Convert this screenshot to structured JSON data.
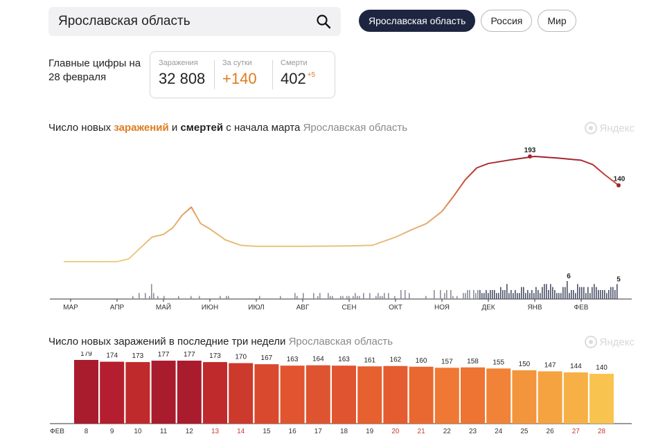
{
  "search": {
    "value": "Ярославская область"
  },
  "tabs": [
    {
      "label": "Ярославская область",
      "active": true
    },
    {
      "label": "Россия",
      "active": false
    },
    {
      "label": "Мир",
      "active": false
    }
  ],
  "key_figures": {
    "title": "Главные цифры на 28 февраля",
    "stats": [
      {
        "label": "Заражения",
        "value": "32 808"
      },
      {
        "label": "За сутки",
        "value": "+140"
      },
      {
        "label": "Смерти",
        "value": "402",
        "delta": "+5"
      }
    ]
  },
  "chart1_title": {
    "p1": "Число новых ",
    "p2": "заражений",
    "p3": " и ",
    "p4": "смертей",
    "p5": " с начала марта",
    "region": "Ярославская область"
  },
  "chart2_title": {
    "text": "Число новых заражений в последние три недели",
    "region": "Ярославская область"
  },
  "brand": "Яндекс",
  "colors": {
    "accent_orange": "#e07a1e",
    "active_tab": "#1e2540",
    "death_bars": "#4a4f66"
  },
  "chart_data": [
    {
      "type": "line",
      "title": "Число новых заражений и смертей с начала марта",
      "x_tick_labels": [
        "МАР",
        "АПР",
        "МАЙ",
        "ИЮН",
        "ИЮЛ",
        "АВГ",
        "СЕН",
        "ОКТ",
        "НОЯ",
        "ДЕК",
        "ЯНВ",
        "ФЕВ"
      ],
      "series": [
        {
          "name": "заражений",
          "points": [
            [
              "МАР",
              0
            ],
            [
              "АПР",
              0
            ],
            [
              "АПР",
              5
            ],
            [
              "АПР",
              25
            ],
            [
              "АПР",
              45
            ],
            [
              "МАЙ",
              50
            ],
            [
              "МАЙ",
              62
            ],
            [
              "МАЙ",
              85
            ],
            [
              "МАЙ",
              100
            ],
            [
              "МАЙ",
              70
            ],
            [
              "ИЮН",
              60
            ],
            [
              "ИЮН",
              40
            ],
            [
              "ИЮН",
              30
            ],
            [
              "ИЮЛ",
              28
            ],
            [
              "ИЮЛ",
              28
            ],
            [
              "АВГ",
              28
            ],
            [
              "СЕН",
              29
            ],
            [
              "СЕН",
              30
            ],
            [
              "ОКТ",
              45
            ],
            [
              "ОКТ",
              58
            ],
            [
              "ОКТ",
              70
            ],
            [
              "НОЯ",
              92
            ],
            [
              "НОЯ",
              120
            ],
            [
              "НОЯ",
              150
            ],
            [
              "НОЯ",
              172
            ],
            [
              "ДЕК",
              180
            ],
            [
              "ДЕК",
              187
            ],
            [
              "ЯНВ",
              193
            ],
            [
              "ЯНВ",
              190
            ],
            [
              "ФЕВ",
              186
            ],
            [
              "ФЕВ",
              178
            ],
            [
              "ФЕВ",
              160
            ],
            [
              "ФЕВ",
              140
            ]
          ],
          "annotations": [
            {
              "x": "ЯНВ",
              "y": 193,
              "label": "193"
            },
            {
              "x": "ФЕВ",
              "y": 140,
              "label": "140"
            }
          ]
        },
        {
          "name": "смертей",
          "type": "bar",
          "annotations": [
            {
              "x": "ЯНВ",
              "y": 6,
              "label": "6"
            },
            {
              "x": "ФЕВ",
              "y": 5,
              "label": "5"
            }
          ],
          "approx_peak": 6
        }
      ]
    },
    {
      "type": "bar",
      "title": "Число новых заражений в последние три недели",
      "first_label": "ФЕВ",
      "categories": [
        "8",
        "9",
        "10",
        "11",
        "12",
        "13",
        "14",
        "15",
        "16",
        "17",
        "18",
        "19",
        "20",
        "21",
        "22",
        "23",
        "24",
        "25",
        "26",
        "27",
        "28"
      ],
      "values": [
        179,
        174,
        173,
        177,
        177,
        173,
        170,
        167,
        163,
        164,
        163,
        161,
        162,
        160,
        157,
        158,
        155,
        150,
        147,
        144,
        140
      ],
      "weekend_categories": [
        "13",
        "14",
        "20",
        "21",
        "27",
        "28"
      ],
      "colors": [
        "#a81c2e",
        "#b51e2e",
        "#bf2a2c",
        "#a81c2e",
        "#a81c2e",
        "#bf2a2c",
        "#cc3a2c",
        "#d8492d",
        "#e05530",
        "#df5430",
        "#e05530",
        "#e66030",
        "#e45c30",
        "#e96831",
        "#ee7834",
        "#ed7433",
        "#f08337",
        "#f3953c",
        "#f5a240",
        "#f7b046",
        "#f9c350"
      ]
    }
  ]
}
